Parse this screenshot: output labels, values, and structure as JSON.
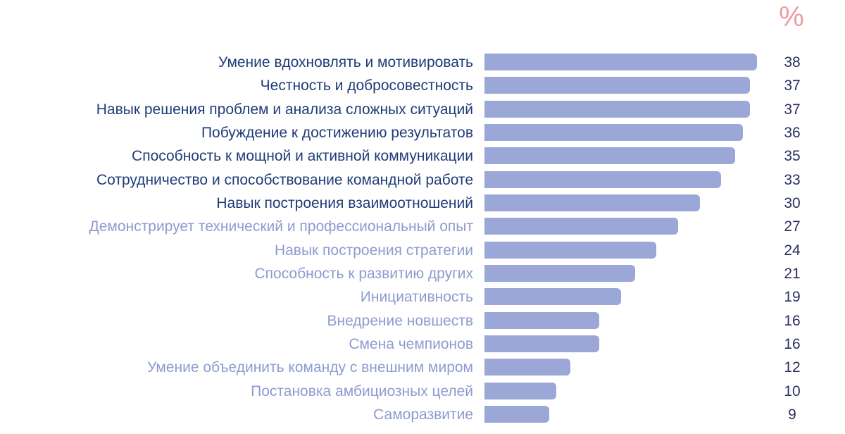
{
  "header": {
    "unit_label": "%"
  },
  "colors": {
    "bar": "#9ba8d7",
    "label_dark": "#1f3c78",
    "label_light": "#8e9bd0",
    "value": "#2b2f63",
    "unit": "#f0999e"
  },
  "chart_data": {
    "type": "bar",
    "orientation": "horizontal",
    "title": "",
    "unit": "%",
    "categories": [
      "Умение вдохновлять и мотивировать",
      "Честность и добросовестность",
      "Навык решения проблем и анализа сложных ситуаций",
      "Побуждение к достижению результатов",
      "Способность к мощной и активной коммуникации",
      "Сотрудничество и способствование командной работе",
      "Навык построения взаимоотношений",
      "Демонстрирует технический и профессиональный опыт",
      "Навык построения стратегии",
      "Способность к развитию других",
      "Инициативность",
      "Внедрение новшеств",
      "Смена чемпионов",
      "Умение объединить команду с внешним миром",
      "Постановка амбициозных целей",
      "Саморазвитие"
    ],
    "values": [
      38,
      37,
      37,
      36,
      35,
      33,
      30,
      27,
      24,
      21,
      19,
      16,
      16,
      12,
      10,
      9
    ],
    "highlighted_top": 7,
    "xlim": [
      0,
      38
    ]
  },
  "rows": [
    {
      "label": "Умение вдохновлять и мотивировать",
      "value": "38"
    },
    {
      "label": "Честность и добросовестность",
      "value": "37"
    },
    {
      "label": "Навык решения проблем и анализа сложных ситуаций",
      "value": "37"
    },
    {
      "label": "Побуждение к достижению результатов",
      "value": "36"
    },
    {
      "label": "Способность к мощной и активной коммуникации",
      "value": "35"
    },
    {
      "label": "Сотрудничество и способствование командной работе",
      "value": "33"
    },
    {
      "label": "Навык построения взаимоотношений",
      "value": "30"
    },
    {
      "label": "Демонстрирует технический и профессиональный опыт",
      "value": "27"
    },
    {
      "label": "Навык построения стратегии",
      "value": "24"
    },
    {
      "label": "Способность к развитию других",
      "value": "21"
    },
    {
      "label": "Инициативность",
      "value": "19"
    },
    {
      "label": "Внедрение новшеств",
      "value": "16"
    },
    {
      "label": "Смена чемпионов",
      "value": "16"
    },
    {
      "label": "Умение объединить команду с внешним миром",
      "value": "12"
    },
    {
      "label": "Постановка амбициозных целей",
      "value": "10"
    },
    {
      "label": "Саморазвитие",
      "value": "9"
    }
  ]
}
